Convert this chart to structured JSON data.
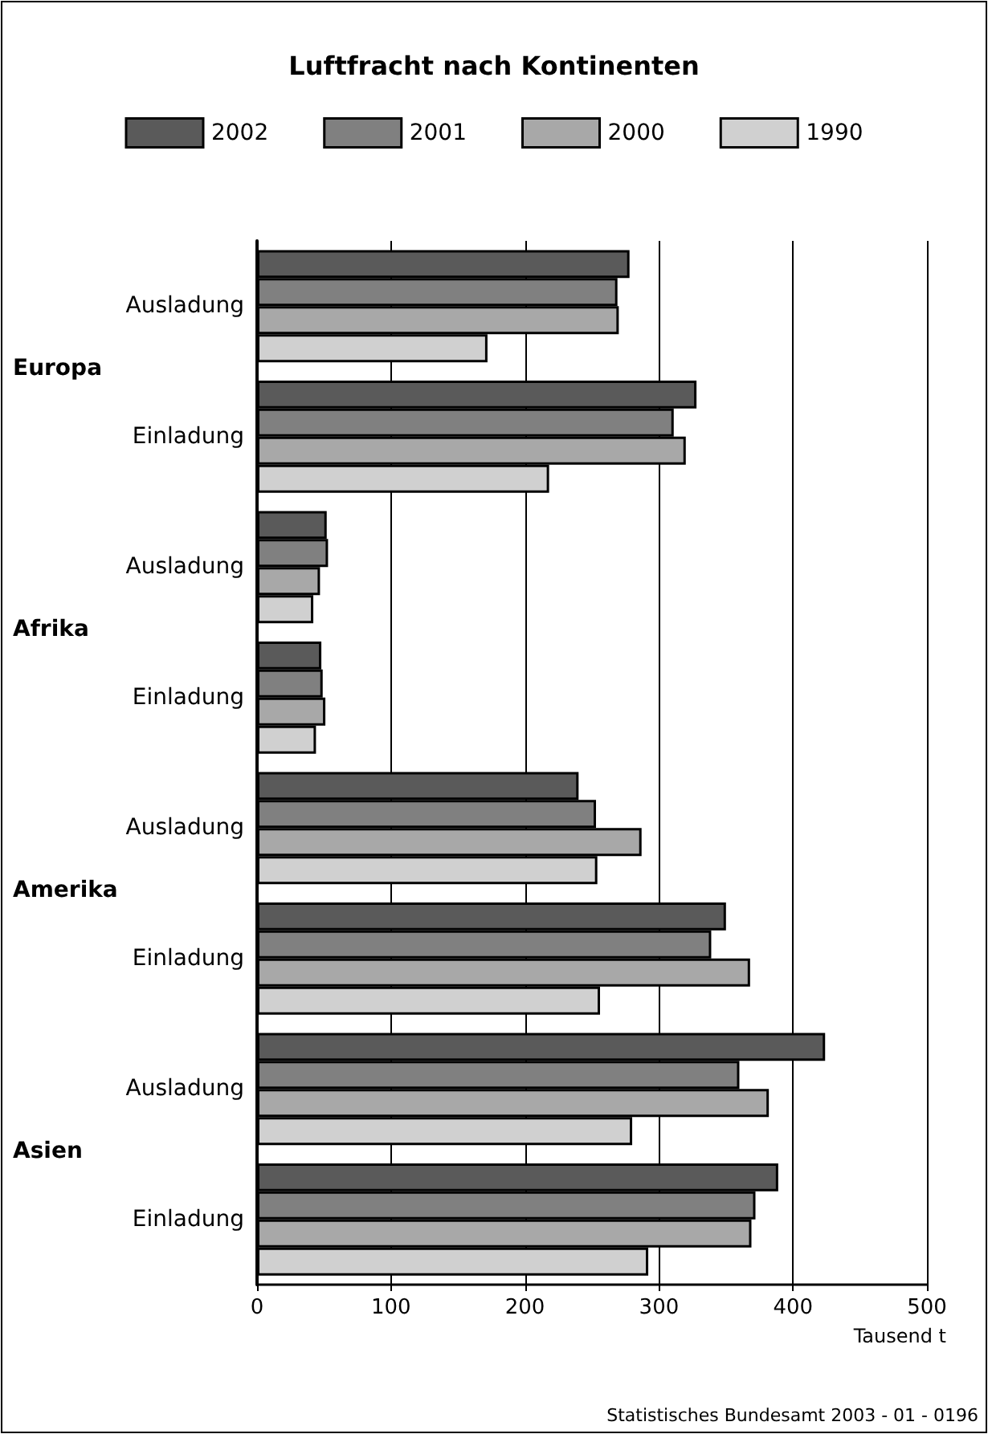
{
  "chart_data": {
    "type": "bar",
    "orientation": "horizontal",
    "title": "Luftfracht nach Kontinenten",
    "xlabel": "Tausend t",
    "categories": [
      "Ausladung",
      "Einladung",
      "Ausladung",
      "Einladung",
      "Ausladung",
      "Einladung",
      "Ausladung",
      "Einladung"
    ],
    "series": [
      {
        "name": "2002",
        "color": "#5a5a5a",
        "values": [
          278,
          328,
          52,
          48,
          240,
          350,
          424,
          389
        ]
      },
      {
        "name": "2001",
        "color": "#808080",
        "values": [
          269,
          311,
          53,
          49,
          253,
          339,
          360,
          372
        ]
      },
      {
        "name": "2000",
        "color": "#a8a8a8",
        "values": [
          270,
          320,
          47,
          51,
          287,
          368,
          382,
          369
        ]
      },
      {
        "name": "1990",
        "color": "#d0d0d0",
        "values": [
          172,
          218,
          42,
          44,
          254,
          256,
          280,
          292
        ]
      }
    ],
    "xlim": [
      0,
      500
    ],
    "xticks": [
      0,
      100,
      200,
      300,
      400,
      500
    ],
    "grid": "x",
    "legend": "top",
    "annotations": [
      "Europa",
      "Afrika",
      "Amerika",
      "Asien",
      "Statistisches Bundesamt 2003 - 01 - 0196"
    ]
  }
}
